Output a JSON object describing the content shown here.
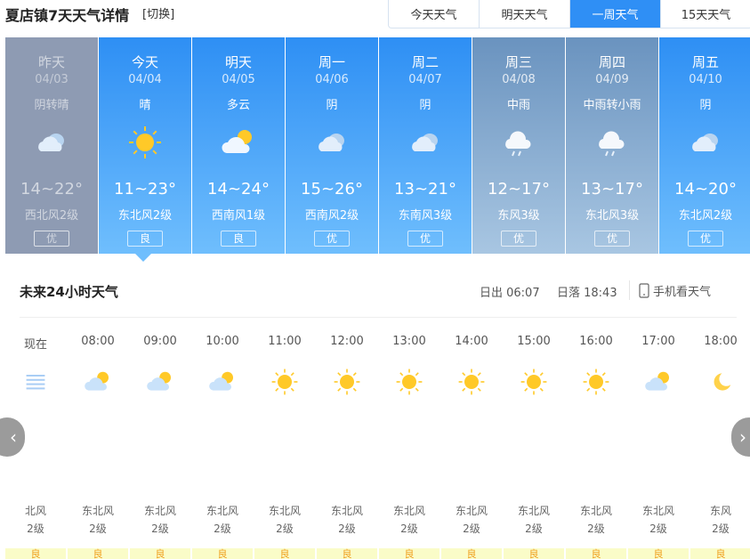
{
  "header": {
    "title": "夏店镇7天天气详情",
    "switch_label": "[切换]"
  },
  "tabs": [
    {
      "label": "今天天气",
      "active": false
    },
    {
      "label": "明天天气",
      "active": false
    },
    {
      "label": "一周天气",
      "active": true
    },
    {
      "label": "15天天气",
      "active": false
    }
  ],
  "days": [
    {
      "week": "昨天",
      "date": "04/03",
      "cond": "阴转晴",
      "icon": "overcast",
      "temp": "14~22°",
      "wind": "西北风2级",
      "aqi": "优",
      "style": "past"
    },
    {
      "week": "今天",
      "date": "04/04",
      "cond": "晴",
      "icon": "sunny",
      "temp": "11~23°",
      "wind": "东北风2级",
      "aqi": "良",
      "style": "normal"
    },
    {
      "week": "明天",
      "date": "04/05",
      "cond": "多云",
      "icon": "partly-cloudy",
      "temp": "14~24°",
      "wind": "西南风1级",
      "aqi": "良",
      "style": "normal"
    },
    {
      "week": "周一",
      "date": "04/06",
      "cond": "阴",
      "icon": "overcast",
      "temp": "15~26°",
      "wind": "西南风2级",
      "aqi": "优",
      "style": "normal"
    },
    {
      "week": "周二",
      "date": "04/07",
      "cond": "阴",
      "icon": "overcast",
      "temp": "13~21°",
      "wind": "东南风3级",
      "aqi": "优",
      "style": "normal"
    },
    {
      "week": "周三",
      "date": "04/08",
      "cond": "中雨",
      "icon": "rain",
      "temp": "12~17°",
      "wind": "东风3级",
      "aqi": "优",
      "style": "rain"
    },
    {
      "week": "周四",
      "date": "04/09",
      "cond": "中雨转小雨",
      "icon": "rain",
      "temp": "13~17°",
      "wind": "东北风3级",
      "aqi": "优",
      "style": "rain"
    },
    {
      "week": "周五",
      "date": "04/10",
      "cond": "阴",
      "icon": "overcast",
      "temp": "14~20°",
      "wind": "东北风2级",
      "aqi": "优",
      "style": "normal"
    }
  ],
  "hourly": {
    "title": "未来24小时天气",
    "sunrise": "日出 06:07",
    "sunset": "日落 18:43",
    "phone_label": "手机看天气",
    "items": [
      {
        "time": "现在",
        "icon": "haze",
        "wind": "北风",
        "level": "2级",
        "aqi": "良"
      },
      {
        "time": "08:00",
        "icon": "partly-cloudy",
        "wind": "东北风",
        "level": "2级",
        "aqi": "良"
      },
      {
        "time": "09:00",
        "icon": "partly-cloudy",
        "wind": "东北风",
        "level": "2级",
        "aqi": "良"
      },
      {
        "time": "10:00",
        "icon": "partly-cloudy",
        "wind": "东北风",
        "level": "2级",
        "aqi": "良"
      },
      {
        "time": "11:00",
        "icon": "sunny",
        "wind": "东北风",
        "level": "2级",
        "aqi": "良"
      },
      {
        "time": "12:00",
        "icon": "sunny",
        "wind": "东北风",
        "level": "2级",
        "aqi": "良"
      },
      {
        "time": "13:00",
        "icon": "sunny",
        "wind": "东北风",
        "level": "2级",
        "aqi": "良"
      },
      {
        "time": "14:00",
        "icon": "sunny",
        "wind": "东北风",
        "level": "2级",
        "aqi": "良"
      },
      {
        "time": "15:00",
        "icon": "sunny",
        "wind": "东北风",
        "level": "2级",
        "aqi": "良"
      },
      {
        "time": "16:00",
        "icon": "sunny",
        "wind": "东北风",
        "level": "2级",
        "aqi": "良"
      },
      {
        "time": "17:00",
        "icon": "partly-cloudy",
        "wind": "东北风",
        "level": "2级",
        "aqi": "良"
      },
      {
        "time": "18:00",
        "icon": "moon",
        "wind": "东风",
        "level": "2级",
        "aqi": "良"
      }
    ]
  },
  "colors": {
    "accent": "#2f8ff5",
    "past": "#8e9bb3",
    "sun": "#ffc928",
    "aqi_bg": "#fafcc8"
  }
}
